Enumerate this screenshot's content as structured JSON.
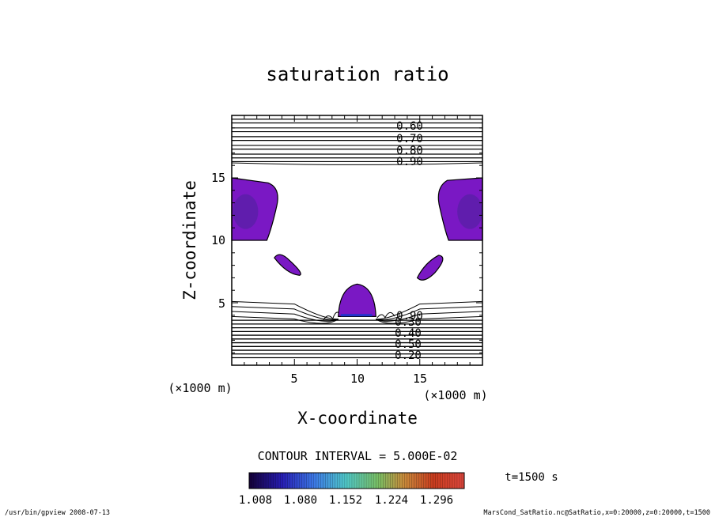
{
  "chart_data": {
    "type": "contour",
    "title": "saturation ratio",
    "xlabel": "X-coordinate",
    "ylabel": "Z-coordinate",
    "x_unit": "(×1000 m)",
    "y_unit": "(×1000 m)",
    "xlim": [
      0,
      20
    ],
    "ylim": [
      0,
      20
    ],
    "x_ticks": [
      "5",
      "10",
      "15"
    ],
    "y_ticks": [
      "5",
      "10",
      "15"
    ],
    "contour_labels": [
      "0.60",
      "0.70",
      "0.80",
      "0.90",
      "0.50",
      "0.40",
      "0.30",
      "0.20",
      "0.90"
    ],
    "contour_interval": "CONTOUR INTERVAL = 5.000E-02",
    "time_label": "t=1500 s",
    "colorbar": {
      "tick_labels": [
        "1.008",
        "1.080",
        "1.152",
        "1.224",
        "1.296"
      ],
      "range": [
        1.008,
        1.33
      ]
    },
    "fill_regions": [
      {
        "x": [
          0,
          3.7
        ],
        "z": [
          10,
          15
        ]
      },
      {
        "x": [
          16.6,
          20
        ],
        "z": [
          10,
          15
        ]
      },
      {
        "x": [
          3.3,
          5.6
        ],
        "z": [
          7.2,
          8.9
        ]
      },
      {
        "x": [
          14.7,
          17.1
        ],
        "z": [
          6.8,
          8.8
        ]
      },
      {
        "x": [
          8.4,
          11.6
        ],
        "z": [
          3.9,
          6.5
        ]
      }
    ]
  },
  "footer": {
    "left": "/usr/bin/gpview   2008-07-13",
    "right": "MarsCond_SatRatio.nc@SatRatio,x=0:20000,z=0:20000,t=1500"
  }
}
